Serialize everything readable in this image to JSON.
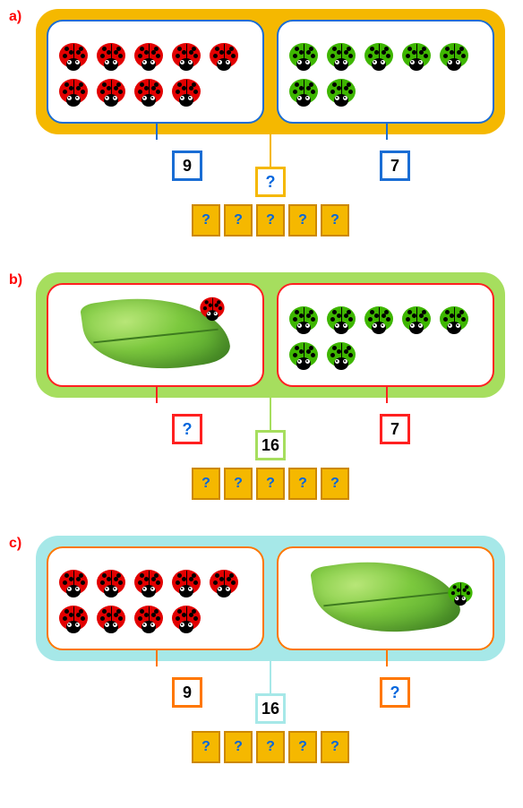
{
  "problems": [
    {
      "id": "a",
      "label": "a)",
      "outer_bg": "#f5b800",
      "inner_border": "#1a6dd4",
      "left": {
        "type": "bugs",
        "count": 9,
        "rows": [
          5,
          4
        ],
        "bug_color": "#e20000",
        "value": "9",
        "box_border": "#1a6dd4"
      },
      "right": {
        "type": "bugs",
        "count": 7,
        "rows": [
          5,
          2
        ],
        "bug_color": "#3eb600",
        "value": "7",
        "box_border": "#1a6dd4"
      },
      "center": {
        "value": "?",
        "box_border": "#f5b800",
        "is_q": true
      },
      "answer": {
        "cells": [
          "?",
          "?",
          "?",
          "?",
          "?"
        ],
        "bg": "#f5b800",
        "border": "#cc8800"
      }
    },
    {
      "id": "b",
      "label": "b)",
      "outer_bg": "#a6de5e",
      "inner_border": "#ff2020",
      "left": {
        "type": "leaf_with_bug",
        "bug_color": "#e20000",
        "value": "?",
        "box_border": "#ff2020",
        "is_q": true
      },
      "right": {
        "type": "bugs",
        "count": 7,
        "rows": [
          5,
          2
        ],
        "bug_color": "#3eb600",
        "value": "7",
        "box_border": "#ff2020"
      },
      "center": {
        "value": "16",
        "box_border": "#a6de5e"
      },
      "answer": {
        "cells": [
          "?",
          "?",
          "?",
          "?",
          "?"
        ],
        "bg": "#f5b800",
        "border": "#cc8800"
      }
    },
    {
      "id": "c",
      "label": "c)",
      "outer_bg": "#a6e8e8",
      "inner_border": "#ff7700",
      "left": {
        "type": "bugs",
        "count": 9,
        "rows": [
          5,
          4
        ],
        "bug_color": "#e20000",
        "value": "9",
        "box_border": "#ff7700"
      },
      "right": {
        "type": "leaf_with_bug_right",
        "bug_color": "#3eb600",
        "value": "?",
        "box_border": "#ff7700",
        "is_q": true
      },
      "center": {
        "value": "16",
        "box_border": "#a6e8e8"
      },
      "answer": {
        "cells": [
          "?",
          "?",
          "?",
          "?",
          "?"
        ],
        "bg": "#f5b800",
        "border": "#cc8800"
      }
    }
  ],
  "label_color": "#ff0000",
  "label_fontsize": 16
}
